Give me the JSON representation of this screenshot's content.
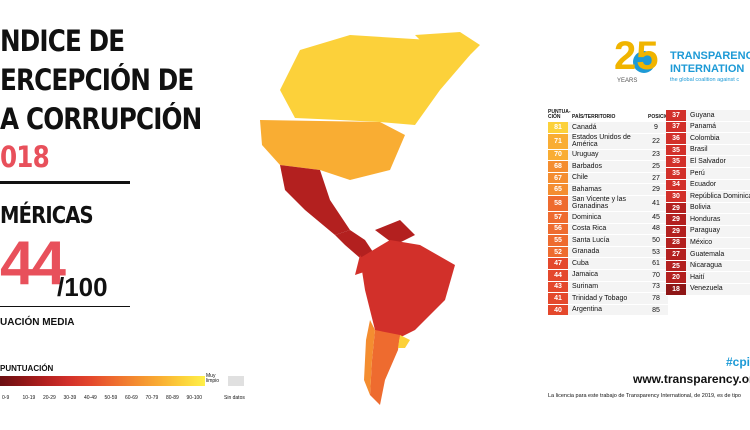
{
  "header": {
    "title_lines": [
      "NDICE DE",
      "ERCEPCIÓN DE",
      "A CORRUPCIÓN"
    ],
    "year": "018"
  },
  "region": {
    "name": "MÉRICAS",
    "score": "44",
    "out_of": "/100",
    "score_caption": "UACIÓN MEDIA"
  },
  "legend": {
    "title": "PUNTUACIÓN",
    "clean_label": "Muy limpio",
    "no_data_label": "Sin datos",
    "bins": [
      "0-9",
      "10-19",
      "20-29",
      "30-39",
      "40-49",
      "50-59",
      "60-69",
      "70-79",
      "80-89",
      "90-100"
    ],
    "colors": [
      "#6b0f12",
      "#8e1616",
      "#b3201f",
      "#d2302a",
      "#e4482c",
      "#ee6b2f",
      "#f48d30",
      "#f9ad33",
      "#fcd13a",
      "#fff04a"
    ],
    "no_data_color": "#e0e0e0"
  },
  "logo": {
    "number": "25",
    "years": "YEARS",
    "name_line1": "TRANSPARENC",
    "name_line2": "INTERNATION",
    "tagline": "the global coalition against c"
  },
  "table": {
    "headers": [
      "PUNTUA-CIÓN",
      "PAÍS/TERRITORIO",
      "POSICIÓN"
    ],
    "left": [
      [
        81,
        "Canadá",
        9
      ],
      [
        71,
        "Estados Unidos de América",
        22
      ],
      [
        70,
        "Uruguay",
        23
      ],
      [
        68,
        "Barbados",
        25
      ],
      [
        67,
        "Chile",
        27
      ],
      [
        65,
        "Bahamas",
        29
      ],
      [
        58,
        "San Vicente y las Granadinas",
        41
      ],
      [
        57,
        "Dominica",
        45
      ],
      [
        56,
        "Costa Rica",
        48
      ],
      [
        55,
        "Santa Lucía",
        50
      ],
      [
        52,
        "Granada",
        53
      ],
      [
        47,
        "Cuba",
        61
      ],
      [
        44,
        "Jamaica",
        70
      ],
      [
        43,
        "Surinam",
        73
      ],
      [
        41,
        "Trinidad y Tobago",
        78
      ],
      [
        40,
        "Argentina",
        85
      ]
    ],
    "right": [
      [
        37,
        "Guyana"
      ],
      [
        37,
        "Panamá"
      ],
      [
        36,
        "Colombia"
      ],
      [
        35,
        "Brasil"
      ],
      [
        35,
        "El Salvador"
      ],
      [
        35,
        "Perú"
      ],
      [
        34,
        "Ecuador"
      ],
      [
        30,
        "República Dominicana"
      ],
      [
        29,
        "Bolivia"
      ],
      [
        29,
        "Honduras"
      ],
      [
        29,
        "Paraguay"
      ],
      [
        28,
        "México"
      ],
      [
        27,
        "Guatemala"
      ],
      [
        25,
        "Nicaragua"
      ],
      [
        20,
        "Haití"
      ],
      [
        18,
        "Venezuela"
      ]
    ]
  },
  "footer": {
    "hashtag": "#cpi",
    "url": "www.transparency.org",
    "license": "La licencia para este trabajo de Transparency International, de 2019, es de tipo"
  }
}
